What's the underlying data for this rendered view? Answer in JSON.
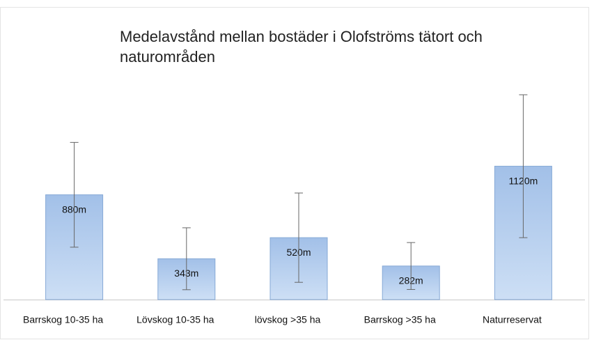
{
  "chart_data": {
    "type": "bar",
    "title": "Medelavstånd mellan bostäder i Olofströms tätort och naturområden",
    "categories": [
      "Barrskog 10-35 ha",
      "Lövskog 10-35 ha",
      "lövskog >35 ha",
      "Barrskog >35 ha",
      "Naturreservat"
    ],
    "values": [
      880,
      343,
      520,
      282,
      1120
    ],
    "value_labels": [
      "880m",
      "343m",
      "520m",
      "282m",
      "1120m"
    ],
    "errors": [
      440,
      260,
      375,
      197,
      600
    ],
    "color": "#a9c5ea"
  }
}
